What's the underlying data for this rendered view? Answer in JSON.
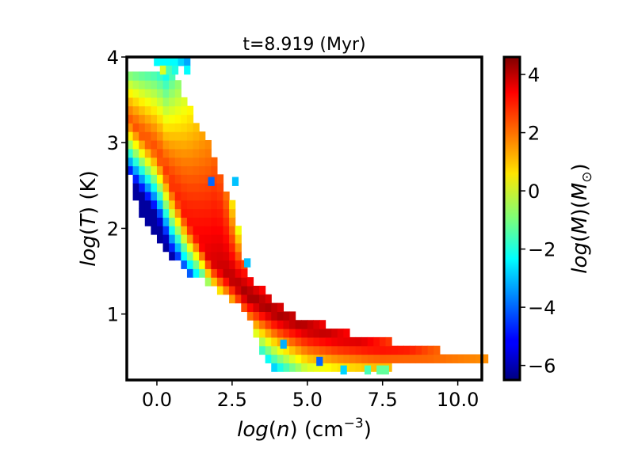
{
  "chart_data": {
    "type": "heatmap",
    "title": "t=8.919 (Myr)",
    "xlabel": {
      "var": "log",
      "arg": "n",
      "unit": "(cm",
      "exp": "−3",
      "close": ")"
    },
    "ylabel": {
      "var": "log",
      "arg": "T",
      "unit": "(K)"
    },
    "colorbar_label": {
      "var": "log",
      "arg": "M",
      "unit_base": "M",
      "unit_sub": "⊙"
    },
    "xlim": [
      -1.0,
      10.8
    ],
    "ylim": [
      0.23,
      4.0
    ],
    "clim": [
      -6.5,
      4.6
    ],
    "colormap": "jet",
    "x_ticks": [
      0.0,
      2.5,
      5.0,
      7.5,
      10.0
    ],
    "x_tick_labels": [
      "0.0",
      "2.5",
      "5.0",
      "7.5",
      "10.0"
    ],
    "y_ticks": [
      1,
      2,
      3,
      4
    ],
    "y_tick_labels": [
      "1",
      "2",
      "3",
      "4"
    ],
    "c_ticks": [
      4,
      2,
      0,
      -2,
      -4,
      -6
    ],
    "c_tick_labels": [
      "4",
      "2",
      "0",
      "−2",
      "−4",
      "−6"
    ],
    "grid": false,
    "bins": {
      "nx": 60,
      "ny": 38,
      "dx": 0.2,
      "dy": 0.1
    },
    "cells": [
      [
        0.0,
        3.95,
        -2.5
      ],
      [
        0.2,
        3.95,
        -2.4
      ],
      [
        0.4,
        3.95,
        -2.4
      ],
      [
        0.6,
        3.95,
        -2.5
      ],
      [
        0.8,
        3.95,
        -2.8
      ],
      [
        1.0,
        3.95,
        -3.3
      ],
      [
        0.2,
        3.85,
        0.2
      ],
      [
        0.4,
        3.85,
        -1.5
      ],
      [
        0.6,
        3.85,
        -2.0
      ],
      [
        1.0,
        3.85,
        -2.6
      ],
      [
        1.8,
        2.55,
        -4.0
      ],
      [
        2.6,
        2.55,
        -3.0
      ],
      [
        3.0,
        1.6,
        -3.0
      ],
      [
        4.2,
        0.65,
        -3.2
      ],
      [
        5.4,
        0.45,
        -4.0
      ],
      [
        6.2,
        0.35,
        -2.8
      ],
      [
        7.0,
        0.35,
        -1.5
      ],
      [
        7.4,
        0.35,
        -1.2
      ],
      [
        7.6,
        0.35,
        -1.2
      ]
    ],
    "ridge": {
      "center": [
        [
          -1.0,
          3.3
        ],
        [
          0.0,
          2.9
        ],
        [
          1.0,
          2.1
        ],
        [
          1.8,
          1.62
        ],
        [
          2.5,
          1.4
        ],
        [
          3.0,
          1.22
        ],
        [
          4.0,
          1.0
        ],
        [
          5.0,
          0.85
        ],
        [
          6.0,
          0.74
        ],
        [
          7.5,
          0.62
        ],
        [
          9.0,
          0.55
        ],
        [
          10.8,
          0.5
        ]
      ],
      "low_side_width": [
        [
          -1.0,
          0.15
        ],
        [
          0.5,
          0.18
        ],
        [
          1.5,
          0.12
        ],
        [
          3.0,
          0.15
        ],
        [
          5.0,
          0.2
        ],
        [
          7.0,
          0.18
        ],
        [
          11.0,
          0.12
        ]
      ],
      "high_side_width": [
        [
          -1.0,
          0.25
        ],
        [
          0.3,
          0.4
        ],
        [
          1.0,
          0.75
        ],
        [
          2.0,
          1.2
        ],
        [
          2.6,
          0.3
        ],
        [
          3.5,
          0.25
        ],
        [
          6.0,
          0.2
        ],
        [
          9.0,
          0.12
        ],
        [
          11.0,
          0.12
        ]
      ],
      "upper_envelope": [
        [
          -1.0,
          3.82
        ],
        [
          0.5,
          3.82
        ],
        [
          1.0,
          3.5
        ],
        [
          1.4,
          3.15
        ],
        [
          1.8,
          2.95
        ],
        [
          2.2,
          2.55
        ],
        [
          2.6,
          2.2
        ],
        [
          3.0,
          1.45
        ],
        [
          3.6,
          1.25
        ],
        [
          4.5,
          1.0
        ],
        [
          6.0,
          0.82
        ],
        [
          7.5,
          0.7
        ],
        [
          9.5,
          0.58
        ],
        [
          10.8,
          0.55
        ]
      ],
      "lower_envelope": [
        [
          -1.0,
          2.75
        ],
        [
          -0.6,
          2.2
        ],
        [
          0.0,
          1.85
        ],
        [
          0.6,
          1.62
        ],
        [
          1.2,
          1.45
        ],
        [
          2.0,
          1.3
        ],
        [
          3.0,
          1.0
        ],
        [
          3.5,
          0.5
        ],
        [
          4.0,
          0.35
        ],
        [
          5.0,
          0.35
        ],
        [
          6.0,
          0.28
        ],
        [
          7.0,
          0.3
        ],
        [
          8.0,
          0.4
        ],
        [
          9.0,
          0.45
        ],
        [
          10.8,
          0.45
        ]
      ],
      "peak_value": [
        [
          -1.0,
          2.4
        ],
        [
          0.0,
          2.6
        ],
        [
          1.0,
          3.2
        ],
        [
          2.0,
          3.8
        ],
        [
          3.0,
          4.3
        ],
        [
          5.0,
          4.1
        ],
        [
          7.0,
          3.6
        ],
        [
          9.0,
          2.8
        ],
        [
          10.8,
          2.0
        ]
      ]
    }
  }
}
